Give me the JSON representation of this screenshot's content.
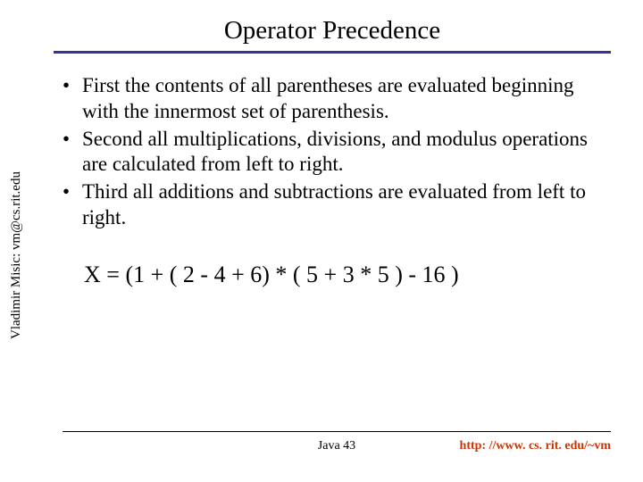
{
  "title": "Operator Precedence",
  "rule_color": "#333399",
  "sidetext": "Vladimir Misic: vm@cs.rit.edu",
  "bullets": [
    "First the contents of all parentheses are evaluated beginning with the innermost set of parenthesis.",
    "Second all multiplications, divisions, and modulus operations are calculated from left to right.",
    "Third all additions and subtractions are evaluated from left to right."
  ],
  "equation": "X = (1 + ( 2 - 4 + 6) * ( 5 + 3 * 5 ) - 16 )",
  "footer_center": "Java 43",
  "footer_right": "http: //www. cs. rit. edu/~vm",
  "link_color": "#cc3300"
}
